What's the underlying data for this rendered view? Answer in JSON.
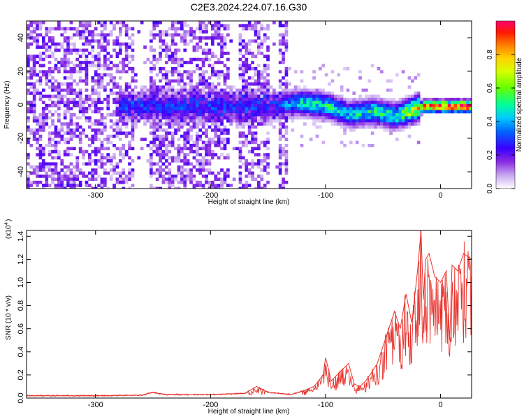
{
  "page": {
    "title": "C2E3.2024.224.07.16.G30"
  },
  "chart_data": [
    {
      "type": "heatmap",
      "title": "C2E3.2024.224.07.16.G30",
      "xlabel": "Height of straight line (km)",
      "ylabel": "Frequency (Hz)",
      "xlim": [
        -360,
        27
      ],
      "ylim": [
        -50,
        50
      ],
      "xticks": [
        -300,
        -200,
        -100,
        0
      ],
      "yticks": [
        -40,
        -20,
        0,
        20,
        40
      ],
      "xtick_labels": [
        "-300",
        "-200",
        "-100",
        "0"
      ],
      "ytick_labels": [
        "-40",
        "-20",
        "0",
        "20",
        "40"
      ],
      "grid": false,
      "colorbar": {
        "label": "Normalized spectral amplitude",
        "range": [
          0,
          1
        ],
        "ticks": [
          0.0,
          0.2,
          0.4,
          0.6,
          0.8
        ],
        "tick_labels": [
          "0.0",
          "0.2",
          "0.4",
          "0.6",
          "0.8"
        ],
        "colors": [
          "#ffffff",
          "#8a2be2",
          "#3a00ff",
          "#00c8ff",
          "#00ff80",
          "#c8ff00",
          "#ffff00",
          "#ff8000",
          "#ff0000",
          "#ff0080"
        ]
      },
      "ridge": {
        "description_points_x": [
          -140,
          -120,
          -100,
          -80,
          -60,
          -40,
          -25,
          -15,
          0,
          20,
          27
        ],
        "description_points_y": [
          1,
          2,
          0,
          -5,
          -3,
          -6,
          -2,
          0,
          0,
          0,
          0
        ],
        "peak_amplitude": [
          0.35,
          0.45,
          0.5,
          0.45,
          0.5,
          0.5,
          0.7,
          0.85,
          0.95,
          0.95,
          0.95
        ]
      }
    },
    {
      "type": "line",
      "xlabel": "Height of straight line (km)",
      "ylabel": "SNR (10 * v/v)",
      "yscale_label": "(x10",
      "yscale_exponent": "4",
      "xlim": [
        -360,
        27
      ],
      "ylim": [
        0,
        1.45
      ],
      "xticks": [
        -300,
        -200,
        -100,
        0
      ],
      "yticks": [
        0.0,
        0.2,
        0.4,
        0.6,
        0.8,
        1.0,
        1.2,
        1.4
      ],
      "xtick_labels": [
        "-300",
        "-200",
        "-100",
        "0"
      ],
      "ytick_labels": [
        "0.0",
        "0.2",
        "0.4",
        "0.6",
        "0.8",
        "1.0",
        "1.2",
        "1.4"
      ],
      "grid": false,
      "series": [
        {
          "color": "#e8302a",
          "x": [
            -360,
            -300,
            -260,
            -250,
            -240,
            -200,
            -170,
            -160,
            -150,
            -130,
            -120,
            -110,
            -102,
            -100,
            -95,
            -90,
            -85,
            -80,
            -75,
            -70,
            -65,
            -60,
            -55,
            -50,
            -45,
            -40,
            -35,
            -30,
            -25,
            -20,
            -17,
            -15,
            -13,
            -10,
            -5,
            0,
            5,
            8,
            10,
            15,
            20,
            27
          ],
          "y": [
            0.02,
            0.02,
            0.025,
            0.05,
            0.03,
            0.03,
            0.04,
            0.1,
            0.05,
            0.03,
            0.06,
            0.1,
            0.2,
            0.35,
            0.15,
            0.2,
            0.25,
            0.3,
            0.12,
            0.1,
            0.15,
            0.22,
            0.3,
            0.45,
            0.6,
            0.75,
            0.6,
            0.9,
            0.65,
            1.1,
            1.45,
            0.85,
            1.2,
            1.25,
            1.05,
            1.0,
            1.1,
            0.5,
            1.15,
            1.1,
            1.25,
            1.2
          ]
        }
      ]
    }
  ]
}
